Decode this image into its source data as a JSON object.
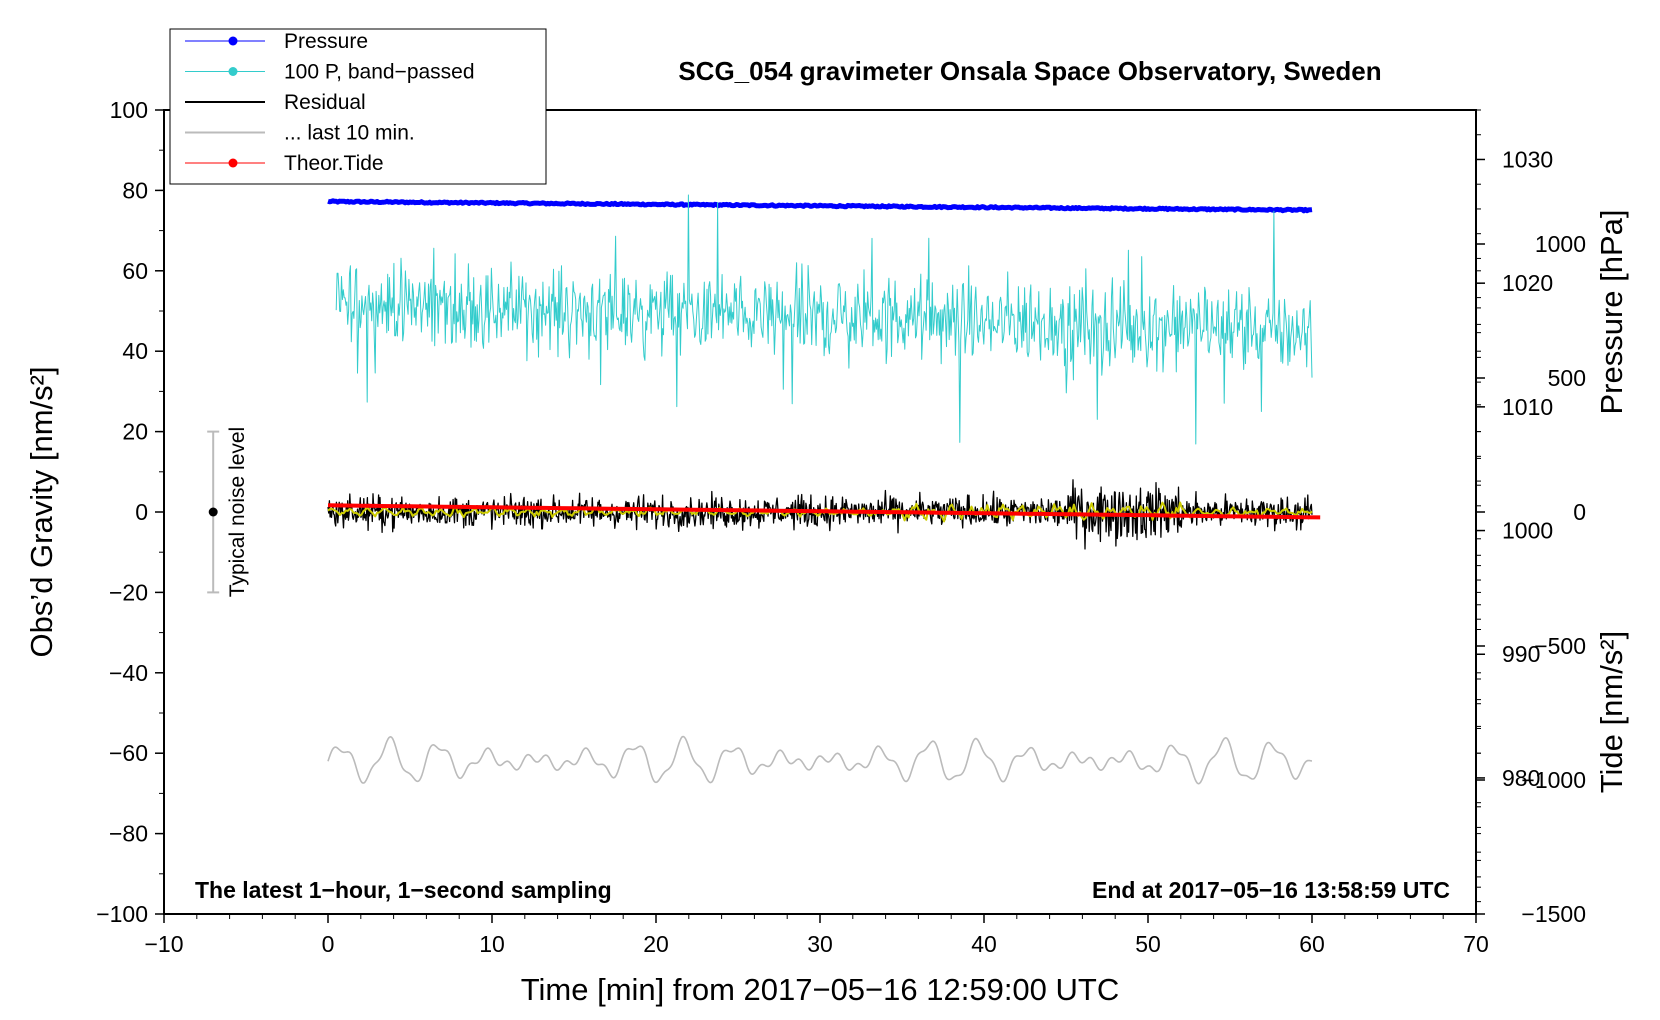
{
  "chart_data": {
    "type": "line",
    "title": "SCG_054 gravimeter Onsala Space Observatory, Sweden",
    "xlabel": "Time [min] from 2017−05−16 12:59:00 UTC",
    "ylabel_left": "Obs’d Gravity [nm/s²]",
    "ylabel_right_top": "Pressure [hPa]",
    "ylabel_right_bottom": "Tide [nm/s²]",
    "xlim": [
      -10,
      70
    ],
    "ylim": [
      -100,
      100
    ],
    "pressure_axis_range": [
      969,
      1034
    ],
    "tide_axis_range": [
      -1500,
      1500
    ],
    "xticks": [
      -10,
      0,
      10,
      20,
      30,
      40,
      50,
      60,
      70
    ],
    "xtick_labels": [
      "−10",
      "0",
      "10",
      "20",
      "30",
      "40",
      "50",
      "60",
      "70"
    ],
    "yticks": [
      100,
      80,
      60,
      40,
      20,
      0,
      -20,
      -40,
      -60,
      -80,
      -100
    ],
    "ytick_labels": [
      "100",
      "80",
      "60",
      "40",
      "20",
      "0",
      "−20",
      "−40",
      "−60",
      "−80",
      "−100"
    ],
    "pressure_ticks": [
      1030,
      1020,
      1010,
      1000,
      990,
      980
    ],
    "pressure_tick_labels": [
      "1030",
      "1020",
      "1010",
      "1000",
      "990",
      "980"
    ],
    "tide_ticks": [
      1000,
      500,
      0,
      -500,
      -1000,
      -1500
    ],
    "tide_tick_labels": [
      "1000",
      "500",
      "0",
      "−500",
      "−1000",
      "−1500"
    ],
    "legend": [
      {
        "label": "Pressure",
        "color": "#0000ff",
        "marker": true
      },
      {
        "label": "100 P, band−passed",
        "color": "#33cccc",
        "marker": true
      },
      {
        "label": "Residual",
        "color": "#000000",
        "marker": false
      },
      {
        "label": "... last 10 min.",
        "color": "#bbbbbb",
        "marker": false
      },
      {
        "label": "Theor.Tide",
        "color": "#ff0000",
        "marker": true
      }
    ],
    "annotations": {
      "bottom_left": "The latest 1−hour, 1−second sampling",
      "bottom_right": "End at 2017−05−16 13:58:59 UTC",
      "noise_label": "Typical noise level"
    },
    "noise_bar": {
      "x": -7,
      "ymin": -20,
      "ymax": 20,
      "center": 0
    },
    "series": [
      {
        "name": "Pressure",
        "color": "#0000ff",
        "axis": "pressure",
        "x_range": [
          0,
          60
        ],
        "start": 1026.6,
        "end": 1025.9
      },
      {
        "name": "100 P, band−passed",
        "color": "#33cccc",
        "axis": "gravity",
        "x_range": [
          0.5,
          60
        ],
        "mean_start": 52,
        "mean_end": 45,
        "amplitude": 12
      },
      {
        "name": "Residual",
        "color": "#000000",
        "axis": "gravity",
        "x_range": [
          0,
          60
        ],
        "mean": 0,
        "amplitude": 3.5
      },
      {
        "name": "Residual smoothed",
        "color": "#cccc00",
        "axis": "gravity",
        "x_range": [
          0,
          60
        ],
        "mean": 0,
        "amplitude": 1
      },
      {
        "name": "... last 10 min.",
        "color": "#bbbbbb",
        "axis": "gravity",
        "x_range": [
          0,
          60
        ],
        "mean": -62,
        "amplitude": 5
      },
      {
        "name": "Theor.Tide",
        "color": "#ff0000",
        "axis": "tide",
        "x_range": [
          0,
          60.5
        ],
        "start": 25,
        "end": -20
      }
    ]
  }
}
